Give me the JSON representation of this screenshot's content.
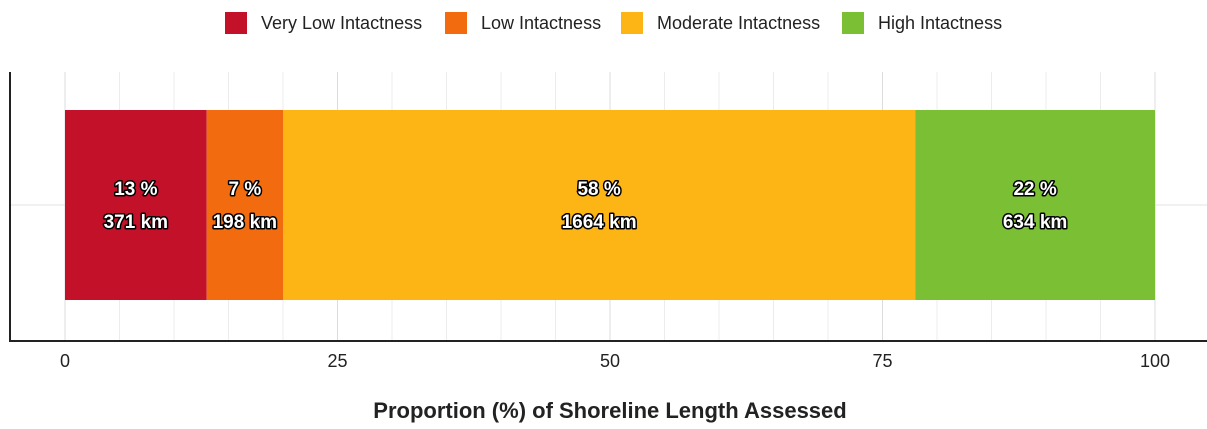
{
  "chart_data": {
    "type": "stacked_bar_horizontal",
    "x_label": "Proportion (%) of Shoreline Length Assessed",
    "categories": [
      null
    ],
    "series": [
      {
        "name": "Very Low Intactness",
        "color": "#c3112a",
        "values": [
          13
        ],
        "value_labels": [
          "13 %"
        ],
        "length_labels": [
          "371 km"
        ]
      },
      {
        "name": "Low Intactness",
        "color": "#f26b0f",
        "values": [
          7
        ],
        "value_labels": [
          "7 %"
        ],
        "length_labels": [
          "198 km"
        ]
      },
      {
        "name": "Moderate Intactness",
        "color": "#fdb515",
        "values": [
          58
        ],
        "value_labels": [
          "58 %"
        ],
        "length_labels": [
          "1664 km"
        ]
      },
      {
        "name": "High Intactness",
        "color": "#7bbf35",
        "values": [
          22
        ],
        "value_labels": [
          "22 %"
        ],
        "length_labels": [
          "634 km"
        ]
      }
    ],
    "xlim": [
      0,
      100
    ],
    "xticks": [
      0,
      25,
      50,
      75,
      100
    ],
    "minor_xticks": [
      5,
      10,
      15,
      20,
      30,
      35,
      40,
      45,
      55,
      60,
      65,
      70,
      80,
      85,
      90,
      95
    ],
    "grid": true,
    "legend": "top"
  }
}
